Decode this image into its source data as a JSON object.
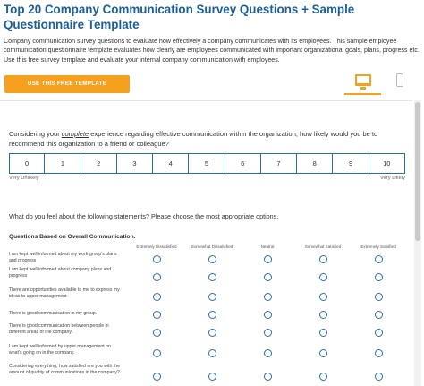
{
  "page": {
    "title": "Top 20 Company Communication Survey Questions + Sample Questionnaire Template",
    "description": "Company communication survey questions to evaluate how effectively a company communicates with its employees. This sample employee communication questionnaire template evaluates how clearly are employees communicated with important organizational goals, plans, progress etc. Use this free survey template and evaluate your internal company communication with employees.",
    "cta_label": "USE THIS FREE TEMPLATE"
  },
  "device_tabs": [
    {
      "name": "desktop",
      "icon": "desktop-icon",
      "active": true
    },
    {
      "name": "mobile",
      "icon": "mobile-icon",
      "active": false
    }
  ],
  "nps_question": {
    "prefix": "Considering your ",
    "emphasis": "complete",
    "suffix": " experience regarding effective communication within the organization, how likely would you be to recommend this organization to a friend or colleague?",
    "scale": [
      "0",
      "1",
      "2",
      "3",
      "4",
      "5",
      "6",
      "7",
      "8",
      "9",
      "10"
    ],
    "low_label": "Very Unlikely",
    "high_label": "Very Likely"
  },
  "matrix": {
    "question": "What do you feel about the following statements? Please choose the most appropriate options.",
    "section_title": "Questions Based on Overall Communication.",
    "columns": [
      "Extremely Dissatisfied",
      "Somewhat Dissatisfied",
      "Neutral",
      "Somewhat Satisfied",
      "Extremely Satisfied"
    ],
    "rows": [
      "I am kept well informed about my work group's plans and progress",
      "I am kept well informed about company plans and progress",
      "There are opportunities available to me to express my ideas to upper management",
      "There is good communication in my group.",
      "There is good communication between people in different areas of the company.",
      "I am kept well informed by upper management on what's going on in the company.",
      "Considering everything, how satisfied are you with the amount of quality of communications in the company?"
    ]
  }
}
